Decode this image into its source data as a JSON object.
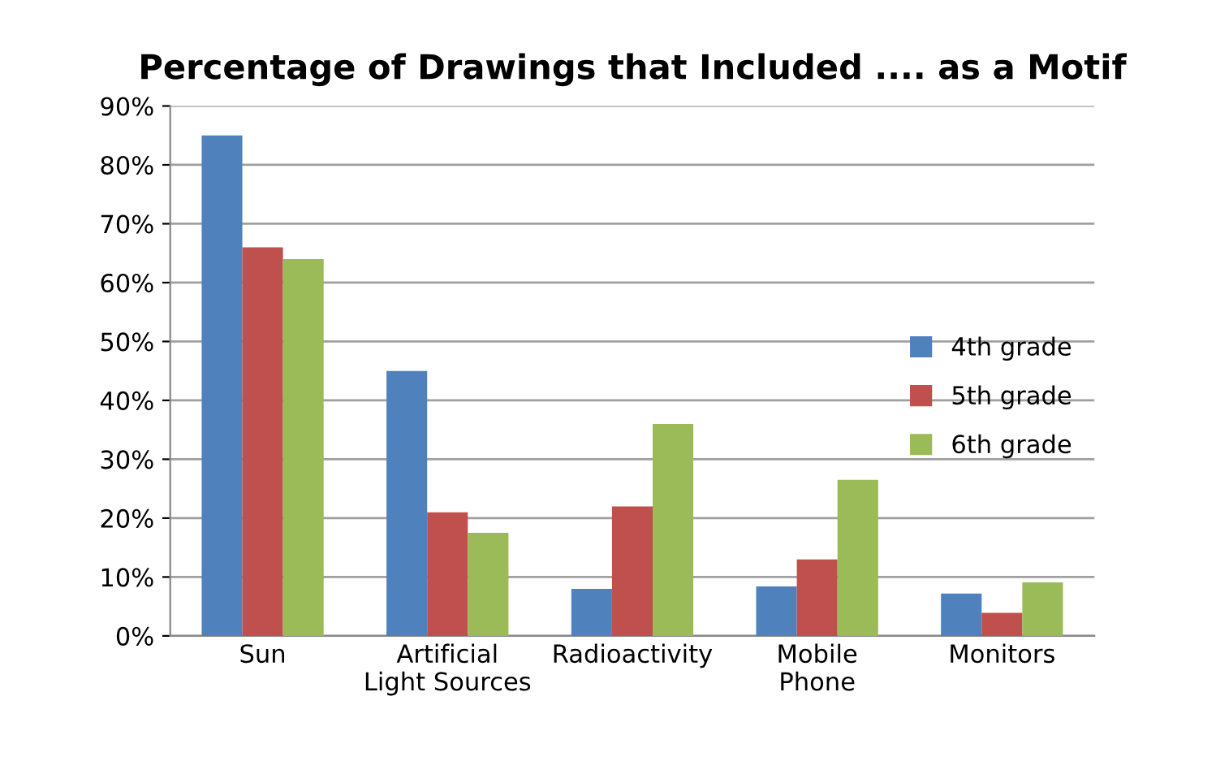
{
  "chart_data": {
    "type": "bar",
    "title": "Percentage of Drawings that Included .... as a Motif",
    "categories": [
      "Sun",
      "Artificial\nLight Sources",
      "Radioactivity",
      "Mobile\nPhone",
      "Monitors"
    ],
    "series": [
      {
        "name": "4th grade",
        "color": "#4f81bd",
        "values": [
          85,
          45,
          8,
          8.4,
          7.2
        ]
      },
      {
        "name": "5th grade",
        "color": "#c0504d",
        "values": [
          66,
          21,
          22,
          13,
          3.9
        ]
      },
      {
        "name": "6th grade",
        "color": "#9bbb59",
        "values": [
          64,
          17.5,
          36,
          26.5,
          9.1
        ]
      }
    ],
    "ylim": [
      0,
      90
    ],
    "yticks": [
      {
        "value": 0,
        "label": "0%"
      },
      {
        "value": 10,
        "label": "10%"
      },
      {
        "value": 20,
        "label": "20%"
      },
      {
        "value": 30,
        "label": "30%"
      },
      {
        "value": 40,
        "label": "40%"
      },
      {
        "value": 50,
        "label": "50%"
      },
      {
        "value": 60,
        "label": "60%"
      },
      {
        "value": 70,
        "label": "70%"
      },
      {
        "value": 80,
        "label": "80%"
      },
      {
        "value": 90,
        "label": "90%"
      }
    ],
    "grid": "y",
    "legend": "right"
  }
}
